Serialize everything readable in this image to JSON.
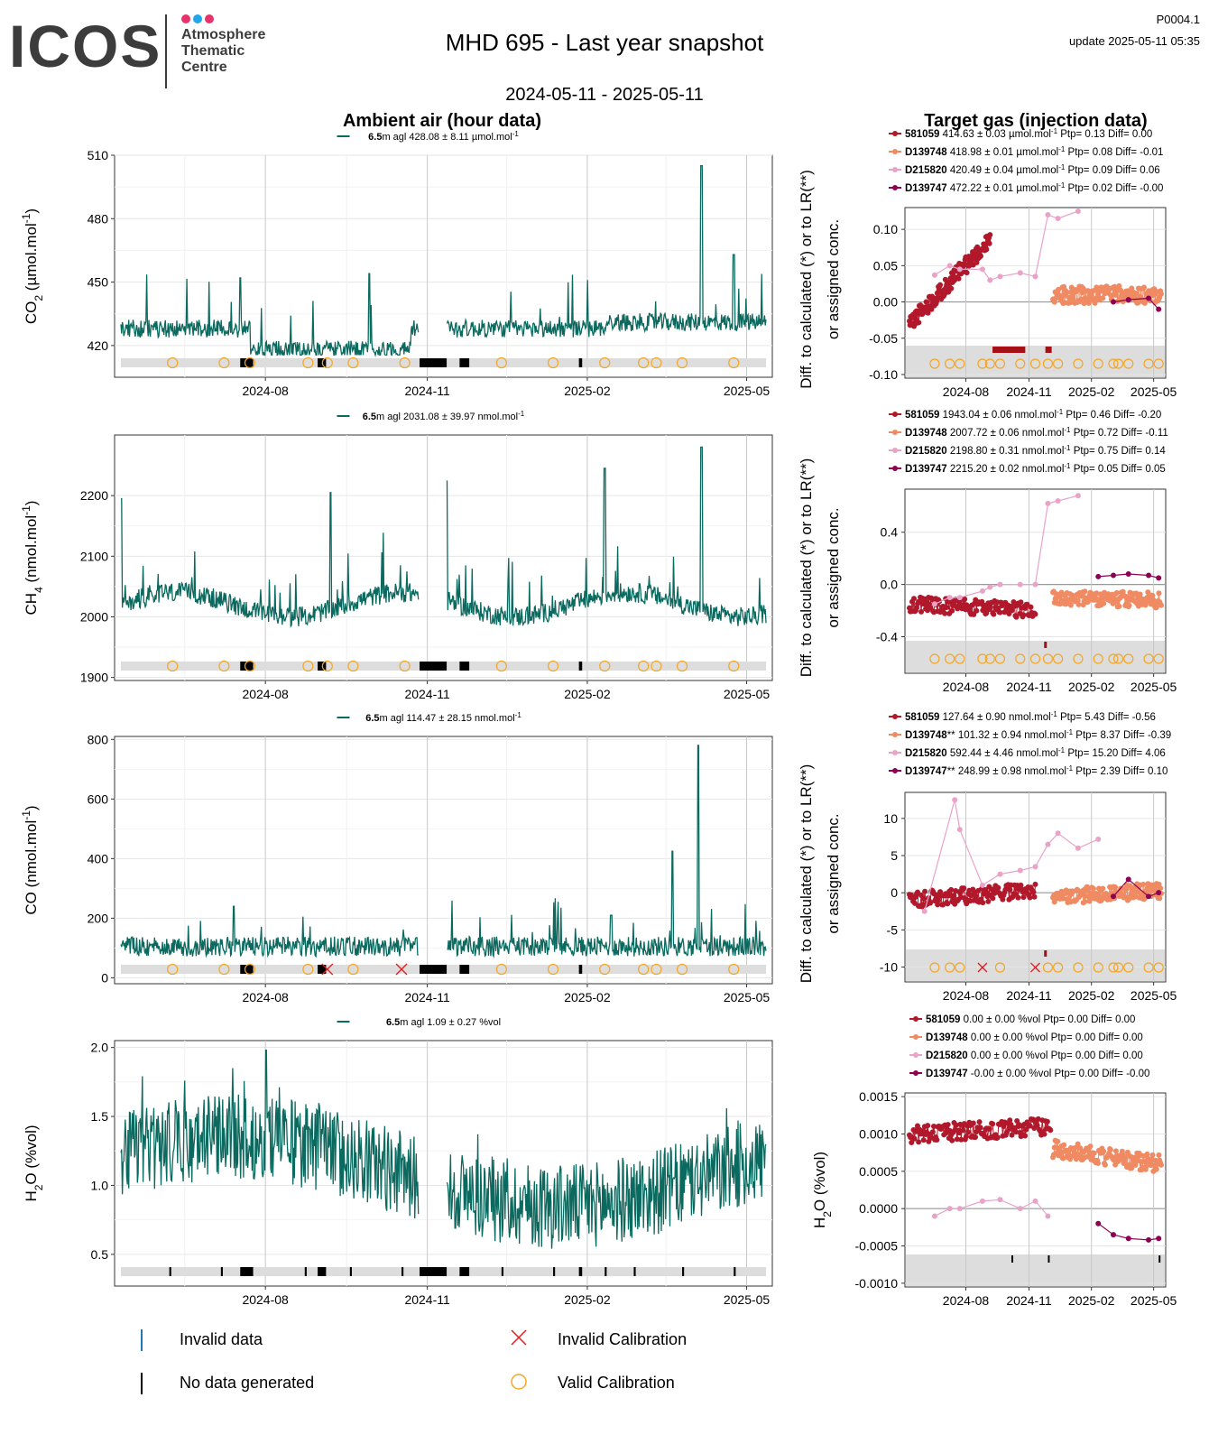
{
  "header": {
    "logo": "ICOS",
    "logo_lines": [
      "Atmosphere",
      "Thematic",
      "Centre"
    ],
    "logo_dot_colors": [
      "#e6336b",
      "#21a7e7",
      "#e6336b"
    ],
    "title": "MHD 695 - Last year snapshot",
    "date_range": "2024-05-11 - 2025-05-11",
    "plot_id": "P0004.1",
    "update": "update  2025-05-11 05:35"
  },
  "section_titles": {
    "ambient": "Ambient air (hour data)",
    "target": "Target gas (injection data)"
  },
  "colors": {
    "ambient_line": "#0b6a5f",
    "flag_band": "#dddddd",
    "valid_calibration": "#f5a623",
    "invalid_calibration": "#e41a1c",
    "invalid_data": "#1f78b4",
    "no_data": "#000000",
    "target_581059": "#b2182b",
    "target_D139748": "#ef8a62",
    "target_D215820": "#e9a3c9",
    "target_D139747": "#8e0152"
  },
  "legend": {
    "invalid_data": "Invalid data",
    "no_data": "No data generated",
    "invalid_calibration": "Invalid Calibration",
    "valid_calibration": "Valid Calibration"
  },
  "chart_data": [
    {
      "type": "line",
      "name": "co2-ambient",
      "ylabel": "CO2 (µmol.mol-1)",
      "ylabel_main": "CO",
      "ylabel_sub": "2",
      "ylabel_rest": " (µmol.mol",
      "ylabel_sup": "-1",
      "ylabel_end": ")",
      "legend_bold": "6.5",
      "legend_text": "m agl 428.08 ± 8.11 µmol.mol",
      "legend_sup": "-1",
      "ylim": [
        405,
        510
      ],
      "yticks": [
        420,
        450,
        480,
        510
      ],
      "xticks": [
        "2024-08",
        "2024-11",
        "2025-02",
        "2025-05"
      ],
      "baseline": 428,
      "valid_cal": [
        0.08,
        0.16,
        0.2,
        0.29,
        0.32,
        0.36,
        0.44,
        0.59,
        0.67,
        0.75,
        0.81,
        0.83,
        0.87,
        0.95
      ],
      "invalid_cal": [],
      "nodata": [
        [
          0.185,
          0.205
        ],
        [
          0.305,
          0.318
        ],
        [
          0.463,
          0.505
        ],
        [
          0.525,
          0.54
        ],
        [
          0.71,
          0.715
        ]
      ],
      "gap": [
        0.462,
        0.505
      ],
      "spikes": [
        [
          0.9,
          505
        ],
        [
          0.385,
          454
        ],
        [
          0.185,
          452
        ],
        [
          0.95,
          463
        ]
      ]
    },
    {
      "type": "line",
      "name": "ch4-ambient",
      "ylabel": "CH4 (nmol.mol-1)",
      "ylabel_main": "CH",
      "ylabel_sub": "4",
      "ylabel_rest": " (nmol.mol",
      "ylabel_sup": "-1",
      "ylabel_end": ")",
      "legend_bold": "6.5",
      "legend_text": "m agl 2031.08 ± 39.97 nmol.mol",
      "legend_sup": "-1",
      "ylim": [
        1895,
        2300
      ],
      "yticks": [
        1900,
        2000,
        2100,
        2200
      ],
      "xticks": [
        "2024-08",
        "2024-11",
        "2025-02",
        "2025-05"
      ],
      "baseline": 2020,
      "valid_cal": [
        0.08,
        0.16,
        0.2,
        0.29,
        0.32,
        0.36,
        0.44,
        0.59,
        0.67,
        0.75,
        0.81,
        0.83,
        0.87,
        0.95
      ],
      "invalid_cal": [],
      "nodata": [
        [
          0.185,
          0.205
        ],
        [
          0.305,
          0.318
        ],
        [
          0.463,
          0.505
        ],
        [
          0.525,
          0.54
        ],
        [
          0.71,
          0.715
        ]
      ],
      "gap": [
        0.462,
        0.505
      ],
      "spikes": [
        [
          0.9,
          2280
        ],
        [
          0.505,
          2225
        ],
        [
          0.0,
          2195
        ],
        [
          0.75,
          2245
        ],
        [
          0.325,
          2205
        ]
      ]
    },
    {
      "type": "line",
      "name": "co-ambient",
      "ylabel": "CO (nmol.mol-1)",
      "ylabel_main": "CO",
      "ylabel_sub": "",
      "ylabel_rest": " (nmol.mol",
      "ylabel_sup": "-1",
      "ylabel_end": ")",
      "legend_bold": "6.5",
      "legend_text": "m agl 114.47 ± 28.15 nmol.mol",
      "legend_sup": "-1",
      "ylim": [
        -20,
        810
      ],
      "yticks": [
        0,
        200,
        400,
        600,
        800
      ],
      "xticks": [
        "2024-08",
        "2024-11",
        "2025-02",
        "2025-05"
      ],
      "baseline": 105,
      "valid_cal": [
        0.08,
        0.16,
        0.2,
        0.29,
        0.36,
        0.59,
        0.67,
        0.75,
        0.81,
        0.83,
        0.87,
        0.95
      ],
      "invalid_cal": [
        0.32,
        0.435
      ],
      "nodata": [
        [
          0.185,
          0.205
        ],
        [
          0.305,
          0.318
        ],
        [
          0.463,
          0.505
        ],
        [
          0.525,
          0.54
        ],
        [
          0.71,
          0.715
        ]
      ],
      "gap": [
        0.462,
        0.505
      ],
      "spikes": [
        [
          0.895,
          780
        ],
        [
          0.855,
          425
        ],
        [
          0.175,
          240
        ],
        [
          0.76,
          210
        ]
      ]
    },
    {
      "type": "line",
      "name": "h2o-ambient",
      "ylabel": "H2O (%vol)",
      "ylabel_main": "H",
      "ylabel_sub": "2",
      "ylabel_rest": "O (%vol)",
      "ylabel_sup": "",
      "ylabel_end": "",
      "legend_bold": "6.5",
      "legend_text": "m agl 1.09 ± 0.27 %vol",
      "legend_sup": "",
      "ylim": [
        0.27,
        2.05
      ],
      "yticks": [
        0.5,
        1.0,
        1.5,
        2.0
      ],
      "ytick_labels": [
        "0.5",
        "1.0",
        "1.5",
        "2.0"
      ],
      "xticks": [
        "2024-08",
        "2024-11",
        "2025-02",
        "2025-05"
      ],
      "baseline": 1.1,
      "valid_cal": [],
      "invalid_cal": [],
      "nodata": [
        [
          0.075,
          0.078
        ],
        [
          0.155,
          0.158
        ],
        [
          0.185,
          0.205
        ],
        [
          0.285,
          0.288
        ],
        [
          0.305,
          0.318
        ],
        [
          0.355,
          0.358
        ],
        [
          0.435,
          0.438
        ],
        [
          0.463,
          0.505
        ],
        [
          0.525,
          0.54
        ],
        [
          0.59,
          0.593
        ],
        [
          0.67,
          0.673
        ],
        [
          0.71,
          0.715
        ],
        [
          0.75,
          0.753
        ],
        [
          0.795,
          0.798
        ],
        [
          0.87,
          0.873
        ],
        [
          0.95,
          0.953
        ]
      ],
      "gap": [
        0.462,
        0.505
      ],
      "spikes": [
        [
          0.225,
          1.98
        ],
        [
          0.5,
          0.42
        ]
      ]
    }
  ],
  "target_charts": [
    {
      "name": "co2-target",
      "ylabel_line1": "Diff. to calculated (*) or to LR(**)",
      "ylabel_line2": "or assigned conc.",
      "ylim": [
        -0.105,
        0.13
      ],
      "yticks": [
        -0.1,
        -0.05,
        0.0,
        0.05,
        0.1
      ],
      "ytick_labels": [
        "-0.10",
        "-0.05",
        "0.00",
        "0.05",
        "0.10"
      ],
      "xticks": [
        "2024-08",
        "2024-11",
        "2025-02",
        "2025-05"
      ],
      "legend": [
        {
          "id": "581059",
          "star": "",
          "text": " 414.63 ± 0.03 µmol.mol",
          "sup": "-1",
          "tail": " Ptp= 0.13 Diff= 0.00"
        },
        {
          "id": "D139748",
          "star": "",
          "text": " 418.98 ± 0.01 µmol.mol",
          "sup": "-1",
          "tail": " Ptp= 0.08 Diff= -0.01"
        },
        {
          "id": "D215820",
          "star": "",
          "text": " 420.49 ± 0.04 µmol.mol",
          "sup": "-1",
          "tail": " Ptp= 0.09 Diff= 0.06"
        },
        {
          "id": "D139747",
          "star": "",
          "text": " 472.22 ± 0.01 µmol.mol",
          "sup": "-1",
          "tail": " Ptp= 0.02 Diff= -0.00"
        }
      ],
      "series_581059": {
        "start": [
          -0.03,
          -0.035
        ],
        "end": [
          0.0,
          0.085
        ],
        "noise": 0.012,
        "x": [
          0.0,
          0.32
        ]
      },
      "series_D139748": {
        "start": [
          0.01,
          -0.03
        ],
        "end": [
          -0.03,
          0.01
        ],
        "noise": 0.012,
        "x": [
          0.57,
          1.0
        ]
      },
      "D215820_points": [
        [
          0.1,
          0.037
        ],
        [
          0.16,
          0.05
        ],
        [
          0.2,
          0.045
        ],
        [
          0.29,
          0.045
        ],
        [
          0.32,
          0.03
        ],
        [
          0.36,
          0.035
        ],
        [
          0.44,
          0.04
        ],
        [
          0.5,
          0.035
        ],
        [
          0.55,
          0.12
        ],
        [
          0.59,
          0.115
        ],
        [
          0.67,
          0.125
        ]
      ],
      "D139747_points": [
        [
          0.81,
          0.0
        ],
        [
          0.87,
          0.003
        ],
        [
          0.95,
          0.005
        ],
        [
          0.99,
          -0.01
        ]
      ],
      "valid_cal": [
        0.1,
        0.16,
        0.2,
        0.29,
        0.32,
        0.36,
        0.44,
        0.5,
        0.55,
        0.59,
        0.67,
        0.75,
        0.81,
        0.83,
        0.87,
        0.95,
        0.99
      ],
      "invalid_cal": [],
      "redmarks": [
        [
          0.33,
          0.46
        ],
        [
          0.54,
          0.565
        ]
      ],
      "blackmarks": []
    },
    {
      "name": "ch4-target",
      "ylabel_line1": "Diff. to calculated (*) or to LR(**)",
      "ylabel_line2": "or assigned conc.",
      "ylim": [
        -0.68,
        0.73
      ],
      "yticks": [
        -0.4,
        0.0,
        0.4
      ],
      "ytick_labels": [
        "-0.4",
        "0.0",
        "0.4"
      ],
      "xticks": [
        "2024-08",
        "2024-11",
        "2025-02",
        "2025-05"
      ],
      "legend": [
        {
          "id": "581059",
          "star": "",
          "text": " 1943.04 ± 0.06 nmol.mol",
          "sup": "-1",
          "tail": " Ptp= 0.46 Diff= -0.20"
        },
        {
          "id": "D139748",
          "star": "",
          "text": " 2007.72 ± 0.06 nmol.mol",
          "sup": "-1",
          "tail": " Ptp= 0.72 Diff= -0.11"
        },
        {
          "id": "D215820",
          "star": "",
          "text": " 2198.80 ± 0.31 nmol.mol",
          "sup": "-1",
          "tail": " Ptp= 0.75 Diff= 0.14"
        },
        {
          "id": "D139747",
          "star": "",
          "text": " 2215.20 ± 0.02 nmol.mol",
          "sup": "-1",
          "tail": " Ptp= 0.05 Diff= 0.05"
        }
      ],
      "series_581059": {
        "start": [
          -0.15,
          -0.2
        ],
        "end": [
          -0.25,
          -0.2
        ],
        "noise": 0.06,
        "x": [
          0.0,
          0.5
        ]
      },
      "series_D139748": {
        "start": [
          -0.1,
          -0.15
        ],
        "end": [
          -0.1,
          -0.12
        ],
        "noise": 0.06,
        "x": [
          0.57,
          1.0
        ]
      },
      "D215820_points": [
        [
          0.1,
          -0.15
        ],
        [
          0.16,
          -0.1
        ],
        [
          0.2,
          -0.1
        ],
        [
          0.29,
          -0.05
        ],
        [
          0.32,
          -0.02
        ],
        [
          0.36,
          0.0
        ],
        [
          0.44,
          0.0
        ],
        [
          0.5,
          0.0
        ],
        [
          0.55,
          0.62
        ],
        [
          0.59,
          0.64
        ],
        [
          0.67,
          0.68
        ]
      ],
      "D139747_points": [
        [
          0.75,
          0.06
        ],
        [
          0.81,
          0.07
        ],
        [
          0.87,
          0.08
        ],
        [
          0.95,
          0.07
        ],
        [
          0.99,
          0.05
        ]
      ],
      "valid_cal": [
        0.1,
        0.16,
        0.2,
        0.29,
        0.32,
        0.36,
        0.44,
        0.5,
        0.55,
        0.59,
        0.67,
        0.75,
        0.81,
        0.83,
        0.87,
        0.95,
        0.99
      ],
      "invalid_cal": [],
      "redmarks": [
        [
          0.535,
          0.545
        ]
      ],
      "blackmarks": []
    },
    {
      "name": "co-target",
      "ylabel_line1": "Diff. to calculated (*) or to LR(**)",
      "ylabel_line2": "or assigned conc.",
      "ylim": [
        -12,
        13.5
      ],
      "yticks": [
        -10,
        -5,
        0,
        5,
        10
      ],
      "ytick_labels": [
        "-10",
        "-5",
        "0",
        "5",
        "10"
      ],
      "xticks": [
        "2024-08",
        "2024-11",
        "2025-02",
        "2025-05"
      ],
      "legend": [
        {
          "id": "581059",
          "star": "",
          "text": " 127.64 ± 0.90 nmol.mol",
          "sup": "-1",
          "tail": " Ptp= 5.43 Diff= -0.56"
        },
        {
          "id": "D139748",
          "star": "**",
          "text": " 101.32 ± 0.94 nmol.mol",
          "sup": "-1",
          "tail": " Ptp= 8.37 Diff= -0.39"
        },
        {
          "id": "D215820",
          "star": "",
          "text": " 592.44 ± 4.46 nmol.mol",
          "sup": "-1",
          "tail": " Ptp= 15.20 Diff= 4.06"
        },
        {
          "id": "D139747",
          "star": "**",
          "text": " 248.99 ± 0.98 nmol.mol",
          "sup": "-1",
          "tail": " Ptp= 2.39 Diff= 0.10"
        }
      ],
      "series_581059": {
        "start": [
          -1,
          -1
        ],
        "end": [
          0.2,
          0.3
        ],
        "noise": 1.1,
        "x": [
          0.0,
          0.5
        ]
      },
      "series_D139748": {
        "start": [
          -0.5,
          -0.5
        ],
        "end": [
          0.0,
          0.3
        ],
        "noise": 1.1,
        "x": [
          0.57,
          1.0
        ]
      },
      "D215820_points": [
        [
          0.06,
          -2.5
        ],
        [
          0.18,
          12.5
        ],
        [
          0.2,
          8.5
        ],
        [
          0.29,
          1.0
        ],
        [
          0.36,
          2.5
        ],
        [
          0.44,
          3.0
        ],
        [
          0.5,
          3.5
        ],
        [
          0.55,
          6.5
        ],
        [
          0.59,
          8.0
        ],
        [
          0.67,
          6.0
        ],
        [
          0.75,
          7.2
        ]
      ],
      "D139747_points": [
        [
          0.81,
          -0.5
        ],
        [
          0.87,
          1.8
        ],
        [
          0.95,
          -0.5
        ],
        [
          0.99,
          0.0
        ]
      ],
      "valid_cal": [
        0.1,
        0.16,
        0.2,
        0.36,
        0.55,
        0.59,
        0.67,
        0.75,
        0.81,
        0.83,
        0.87,
        0.95,
        0.99
      ],
      "invalid_cal": [
        0.29,
        0.5
      ],
      "redmarks": [
        [
          0.535,
          0.545
        ]
      ],
      "blackmarks": []
    },
    {
      "name": "h2o-target",
      "ylabel_line1": "H2O (%vol)",
      "ylabel_line2": "",
      "h2o_label": true,
      "ylim": [
        -0.00105,
        0.00155
      ],
      "yticks": [
        -0.001,
        -0.0005,
        0.0,
        0.0005,
        0.001,
        0.0015
      ],
      "ytick_labels": [
        "-0.0010",
        "-0.0005",
        "0.0000",
        "0.0005",
        "0.0010",
        "0.0015"
      ],
      "xticks": [
        "2024-08",
        "2024-11",
        "2025-02",
        "2025-05"
      ],
      "legend": [
        {
          "id": "581059",
          "star": "",
          "text": " 0.00 ± 0.00 %vol",
          "sup": "",
          "tail": " Ptp= 0.00 Diff= 0.00"
        },
        {
          "id": "D139748",
          "star": "",
          "text": " 0.00 ± 0.00 %vol",
          "sup": "",
          "tail": " Ptp= 0.00 Diff= 0.00"
        },
        {
          "id": "D215820",
          "star": "",
          "text": " 0.00 ± 0.00 %vol",
          "sup": "",
          "tail": " Ptp= 0.00 Diff= 0.00"
        },
        {
          "id": "D139747",
          "star": "",
          "text": " -0.00 ± 0.00 %vol",
          "sup": "",
          "tail": " Ptp= 0.00 Diff= -0.00"
        }
      ],
      "series_581059": {
        "start": [
          0.001,
          0.0009
        ],
        "end": [
          0.0011,
          0.0011
        ],
        "noise": 0.00012,
        "x": [
          0.0,
          0.56
        ]
      },
      "series_D139748": {
        "start": [
          0.0008,
          0.0007
        ],
        "end": [
          0.0004,
          0.0006
        ],
        "noise": 0.00012,
        "x": [
          0.57,
          1.0
        ]
      },
      "D215820_points": [
        [
          0.1,
          -0.0001
        ],
        [
          0.16,
          0.0
        ],
        [
          0.2,
          0.0
        ],
        [
          0.29,
          0.0001
        ],
        [
          0.36,
          0.00012
        ],
        [
          0.44,
          0.0
        ],
        [
          0.5,
          0.0001
        ],
        [
          0.55,
          -0.0001
        ]
      ],
      "D139747_points": [
        [
          0.75,
          -0.0002
        ],
        [
          0.81,
          -0.00035
        ],
        [
          0.87,
          -0.0004
        ],
        [
          0.95,
          -0.00042
        ],
        [
          0.99,
          -0.0004
        ]
      ],
      "valid_cal": [],
      "invalid_cal": [],
      "redmarks": [],
      "blackmarks": [
        [
          0.405,
          0.408
        ],
        [
          0.55,
          0.555
        ],
        [
          0.99,
          0.993
        ]
      ]
    }
  ]
}
